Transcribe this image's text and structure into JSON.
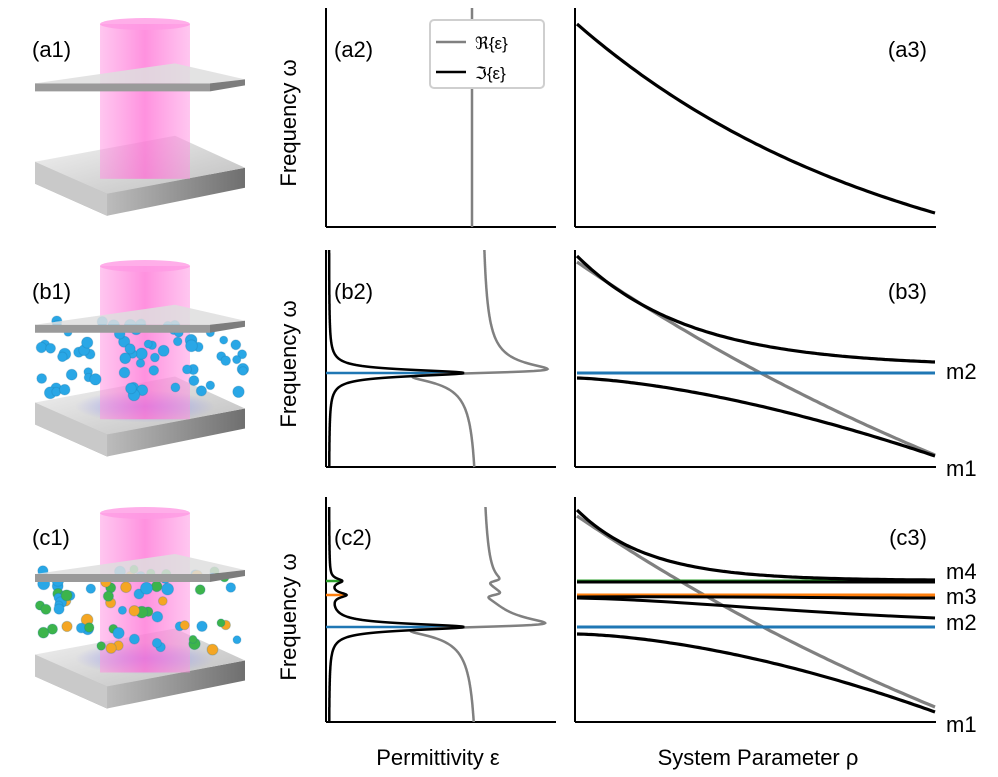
{
  "rows": [
    {
      "illus_label": "(a1)",
      "perm_label": "(a2)",
      "disp_label": "(a3)",
      "modes": []
    },
    {
      "illus_label": "(b1)",
      "perm_label": "(b2)",
      "disp_label": "(b3)",
      "modes": [
        "m2",
        "m1"
      ]
    },
    {
      "illus_label": "(c1)",
      "perm_label": "(c2)",
      "disp_label": "(c3)",
      "modes": [
        "m4",
        "m3",
        "m2",
        "m1"
      ]
    }
  ],
  "legend": {
    "real": "ℜ{ε}",
    "imag": "ℑ{ε}"
  },
  "ylabel": "Frequency ω",
  "xlabel_perm": "Permittivity ε",
  "xlabel_disp": "System Parameter ρ",
  "colors": {
    "real": "#808080",
    "imag": "#000000",
    "mode_blue": "#1f77b4",
    "mode_orange": "#ff7f0e",
    "mode_green": "#2ca02c",
    "beam": "#ff7fd6",
    "molecule_blue": "#29a7e6",
    "molecule_green": "#3cb44b",
    "molecule_orange": "#f5a623",
    "mirror": "#a8a8a8"
  }
}
